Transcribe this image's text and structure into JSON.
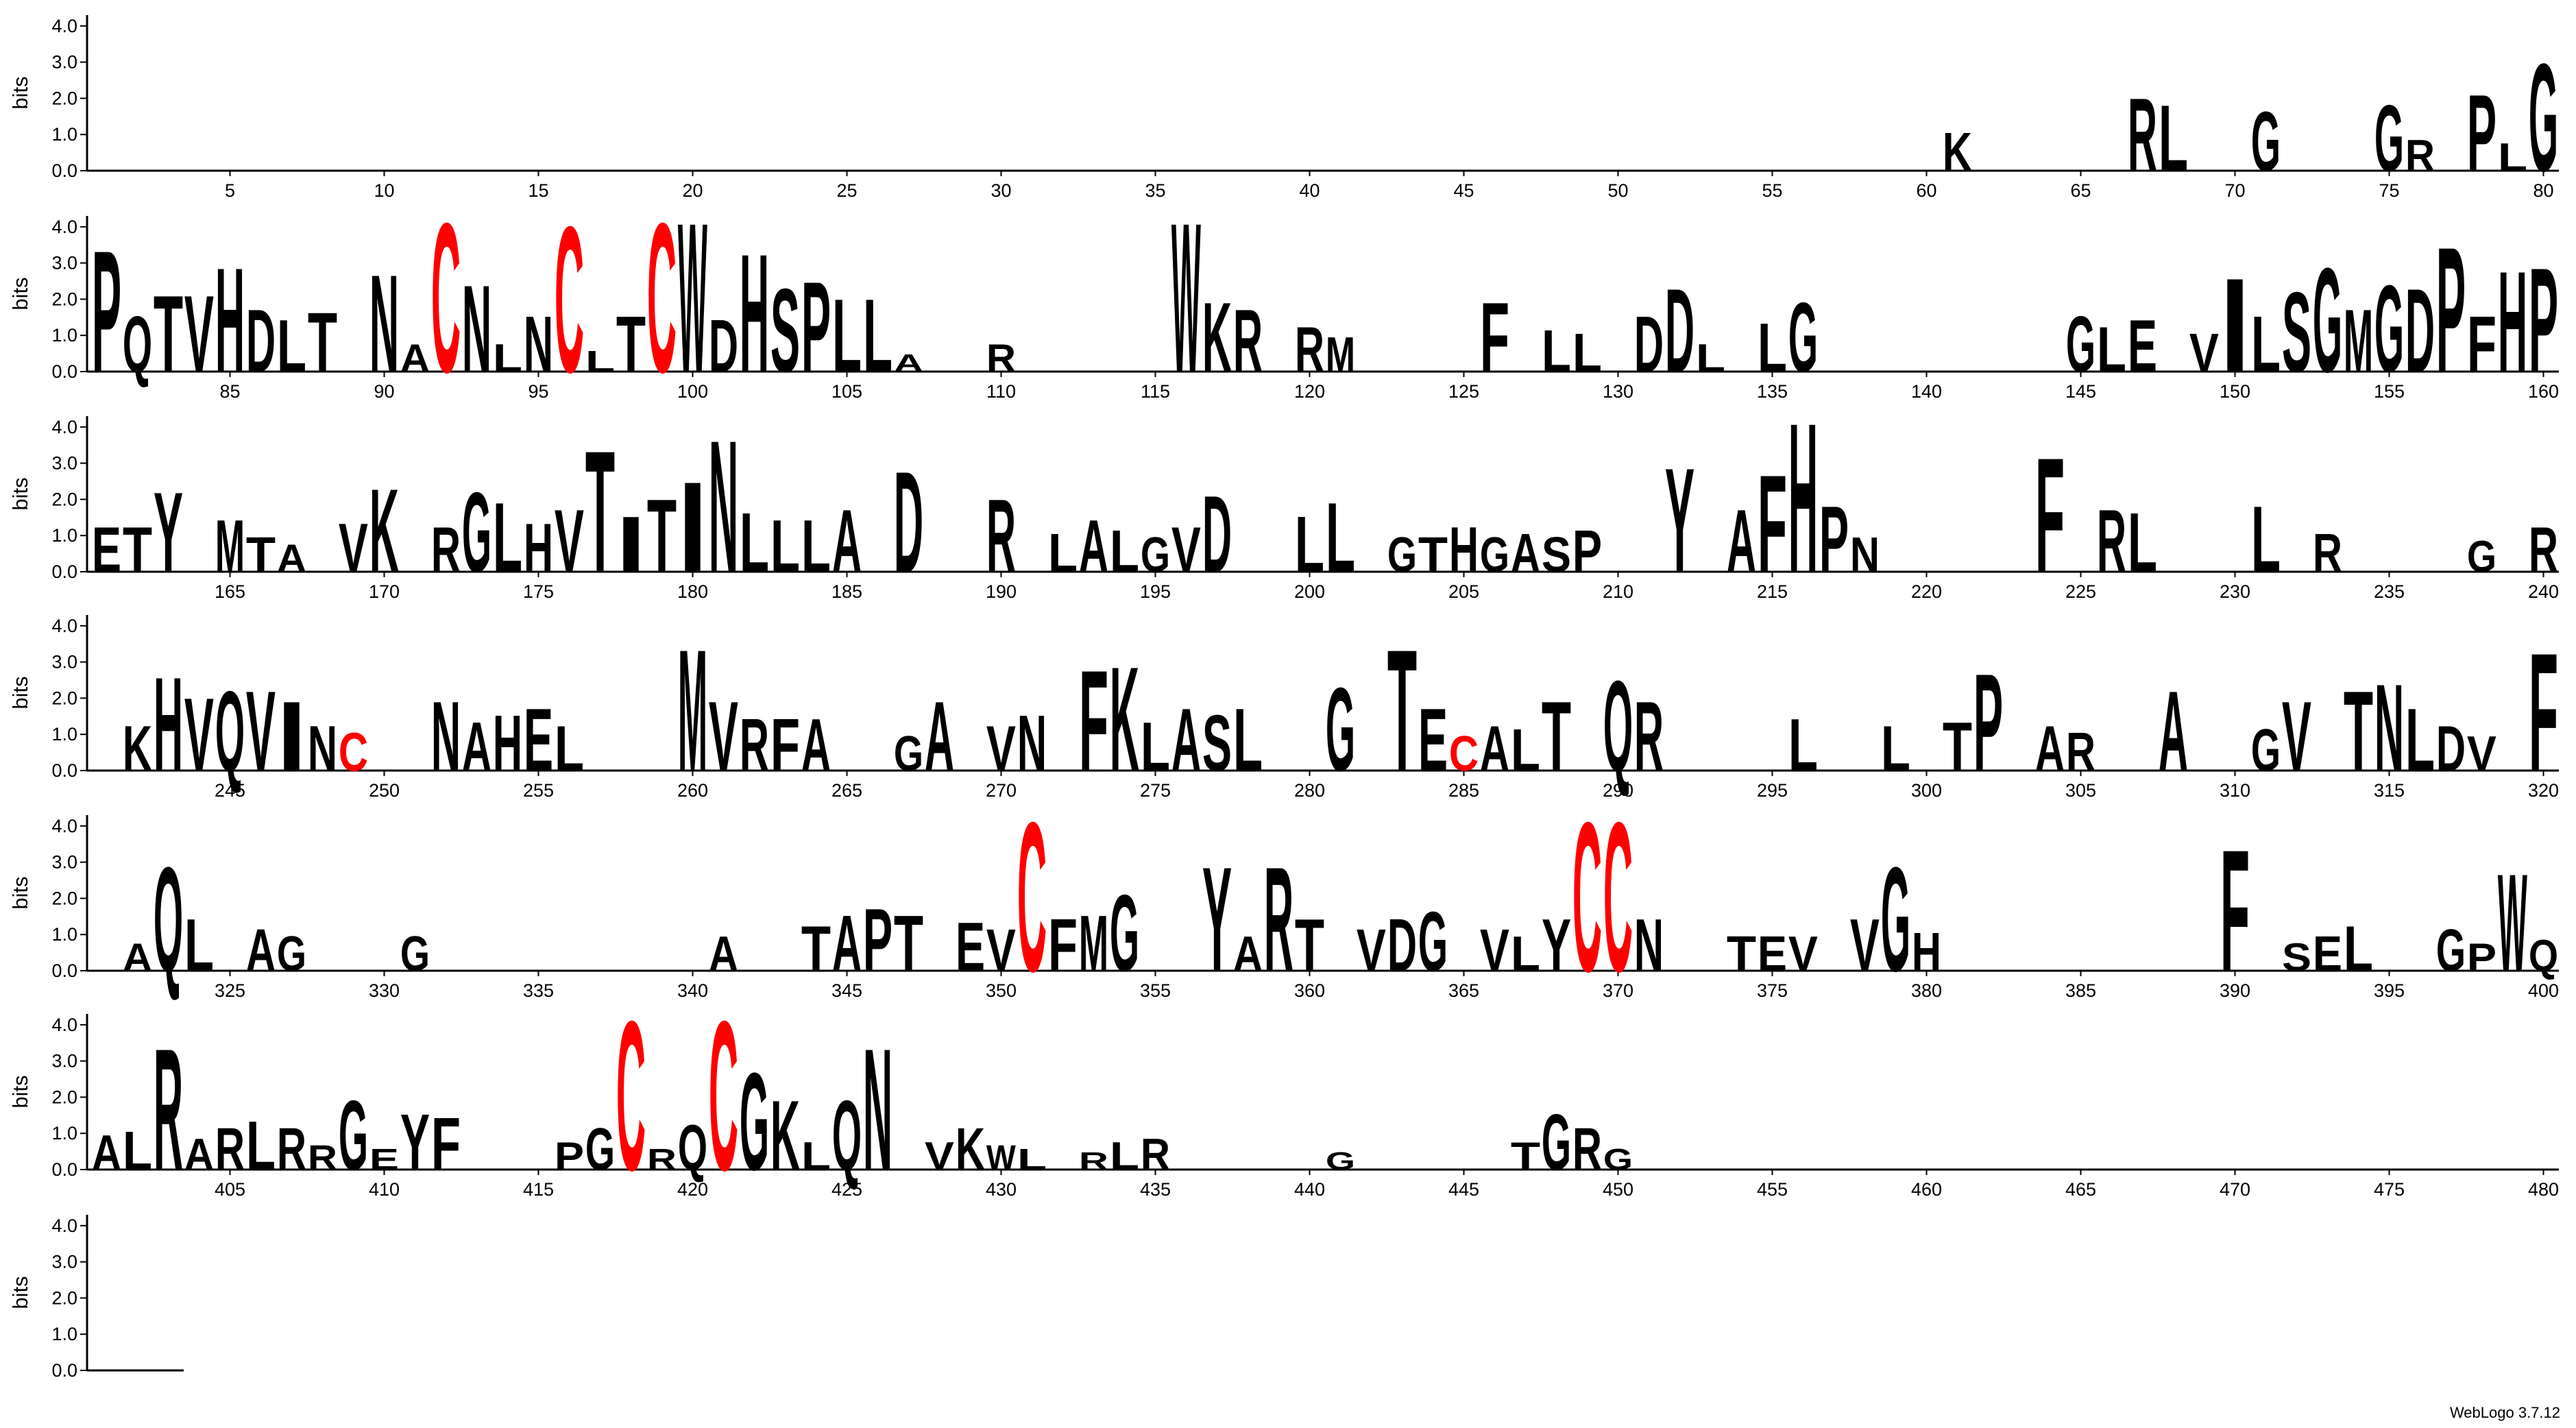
{
  "chart_data": [
    {
      "type": "logo",
      "ylabel": "bits",
      "colors": {
        "default": "#000000",
        "C": "#ff0000"
      },
      "xlim": [
        0.5,
        80.5
      ],
      "xticks": [
        5,
        10,
        15,
        20,
        25,
        30,
        35,
        40,
        45,
        50,
        55,
        60,
        65,
        70,
        75,
        80
      ],
      "ylim": [
        0,
        4.3
      ],
      "yticks": [
        {
          "value": 0,
          "label": "0.0"
        },
        {
          "value": 1,
          "label": "1.0"
        },
        {
          "value": 2,
          "label": "2.0"
        },
        {
          "value": 3,
          "label": "3.0"
        },
        {
          "value": 4,
          "label": "4.0"
        }
      ],
      "x": [
        61,
        67,
        68,
        71,
        75,
        76,
        78,
        79,
        80
      ],
      "letters": [
        "K",
        "R",
        "L",
        "G",
        "G",
        "R",
        "P",
        "L",
        "G"
      ],
      "values": [
        1.1,
        2.1,
        1.9,
        1.7,
        1.9,
        0.9,
        2.2,
        0.8,
        3.1
      ]
    },
    {
      "type": "logo",
      "ylabel": "bits",
      "colors": {
        "default": "#000000",
        "C": "#ff0000"
      },
      "xlim": [
        80.5,
        160.5
      ],
      "xticks": [
        85,
        90,
        95,
        100,
        105,
        110,
        115,
        120,
        125,
        130,
        135,
        140,
        145,
        150,
        155,
        160
      ],
      "ylim": [
        0,
        4.3
      ],
      "yticks": [
        {
          "value": 0,
          "label": "0.0"
        },
        {
          "value": 1,
          "label": "1.0"
        },
        {
          "value": 2,
          "label": "2.0"
        },
        {
          "value": 3,
          "label": "3.0"
        },
        {
          "value": 4,
          "label": "4.0"
        }
      ],
      "x": [
        81,
        82,
        83,
        84,
        85,
        86,
        87,
        88,
        90,
        91,
        92,
        93,
        94,
        95,
        96,
        97,
        98,
        99,
        100,
        101,
        102,
        103,
        104,
        105,
        106,
        107,
        110,
        116,
        117,
        118,
        120,
        121,
        126,
        128,
        129,
        131,
        132,
        133,
        135,
        136,
        145,
        146,
        147,
        149,
        150,
        151,
        152,
        153,
        154,
        155,
        156,
        157,
        158,
        159,
        160
      ],
      "letters": [
        "P",
        "Q",
        "T",
        "V",
        "H",
        "D",
        "L",
        "T",
        "N",
        "A",
        "C",
        "N",
        "L",
        "N",
        "C",
        "L",
        "T",
        "C",
        "W",
        "D",
        "H",
        "S",
        "P",
        "L",
        "L",
        "A",
        "R",
        "W",
        "K",
        "R",
        "R",
        "M",
        "F",
        "L",
        "L",
        "D",
        "D",
        "L",
        "L",
        "G",
        "G",
        "L",
        "E",
        "V",
        "I",
        "L",
        "S",
        "G",
        "M",
        "G",
        "D",
        "P",
        "F",
        "H",
        "P"
      ],
      "values": [
        3.5,
        1.6,
        2.2,
        2.2,
        3.0,
        1.8,
        1.5,
        1.7,
        2.8,
        0.8,
        4.3,
        2.5,
        0.8,
        1.6,
        4.2,
        0.6,
        1.6,
        4.3,
        4.3,
        1.5,
        3.4,
        2.4,
        2.6,
        2.1,
        2.1,
        0.5,
        0.8,
        4.3,
        2.0,
        1.8,
        1.3,
        1.0,
        2.0,
        1.2,
        1.1,
        1.6,
        2.4,
        0.8,
        1.4,
        2.0,
        1.6,
        1.3,
        1.5,
        1.1,
        2.7,
        1.6,
        2.3,
        3.0,
        1.8,
        2.5,
        2.4,
        3.6,
        1.6,
        2.9,
        3.0
      ]
    },
    {
      "type": "logo",
      "ylabel": "bits",
      "colors": {
        "default": "#000000",
        "C": "#ff0000"
      },
      "xlim": [
        160.5,
        240.5
      ],
      "xticks": [
        165,
        170,
        175,
        180,
        185,
        190,
        195,
        200,
        205,
        210,
        215,
        220,
        225,
        230,
        235,
        240
      ],
      "ylim": [
        0,
        4.3
      ],
      "yticks": [
        {
          "value": 0,
          "label": "0.0"
        },
        {
          "value": 1,
          "label": "1.0"
        },
        {
          "value": 2,
          "label": "2.0"
        },
        {
          "value": 3,
          "label": "3.0"
        },
        {
          "value": 4,
          "label": "4.0"
        }
      ],
      "x": [
        161,
        162,
        163,
        165,
        166,
        167,
        169,
        170,
        172,
        173,
        174,
        175,
        176,
        177,
        178,
        179,
        180,
        181,
        182,
        183,
        184,
        185,
        187,
        190,
        192,
        193,
        194,
        195,
        196,
        197,
        200,
        201,
        203,
        204,
        205,
        206,
        207,
        208,
        209,
        212,
        214,
        215,
        216,
        217,
        218,
        224,
        226,
        227,
        231,
        233,
        238,
        240
      ],
      "letters": [
        "E",
        "T",
        "Y",
        "M",
        "T",
        "A",
        "V",
        "K",
        "R",
        "G",
        "L",
        "H",
        "V",
        "T",
        "I",
        "T",
        "I",
        "N",
        "L",
        "L",
        "L",
        "A",
        "D",
        "R",
        "L",
        "A",
        "L",
        "G",
        "V",
        "D",
        "L",
        "L",
        "G",
        "T",
        "H",
        "G",
        "A",
        "S",
        "P",
        "Y",
        "A",
        "F",
        "H",
        "P",
        "N",
        "F",
        "R",
        "L",
        "L",
        "R",
        "G",
        "R"
      ],
      "values": [
        1.3,
        1.3,
        2.3,
        1.5,
        1.0,
        0.8,
        1.4,
        2.4,
        1.3,
        2.3,
        2.0,
        1.4,
        1.8,
        3.5,
        1.6,
        2.1,
        2.6,
        3.8,
        1.7,
        1.5,
        1.5,
        1.8,
        2.9,
        2.1,
        1.1,
        1.5,
        1.2,
        1.0,
        1.3,
        2.2,
        1.6,
        2.0,
        1.0,
        1.0,
        1.3,
        1.0,
        1.1,
        1.0,
        1.2,
        3.0,
        1.8,
        2.8,
        4.3,
        1.9,
        1.0,
        3.3,
        1.8,
        1.7,
        1.9,
        1.1,
        0.9,
        1.3
      ]
    },
    {
      "type": "logo",
      "ylabel": "bits",
      "colors": {
        "default": "#000000",
        "C": "#ff0000"
      },
      "xlim": [
        240.5,
        320.5
      ],
      "xticks": [
        245,
        250,
        255,
        260,
        265,
        270,
        275,
        280,
        285,
        290,
        295,
        300,
        305,
        310,
        315,
        320
      ],
      "ylim": [
        0,
        4.3
      ],
      "yticks": [
        {
          "value": 0,
          "label": "0.0"
        },
        {
          "value": 1,
          "label": "1.0"
        },
        {
          "value": 2,
          "label": "2.0"
        },
        {
          "value": 3,
          "label": "3.0"
        },
        {
          "value": 4,
          "label": "4.0"
        }
      ],
      "x": [
        242,
        243,
        244,
        245,
        246,
        247,
        248,
        249,
        252,
        253,
        254,
        255,
        256,
        260,
        261,
        262,
        263,
        264,
        267,
        268,
        270,
        271,
        273,
        274,
        275,
        276,
        277,
        278,
        281,
        283,
        284,
        285,
        286,
        287,
        288,
        290,
        291,
        296,
        299,
        301,
        302,
        304,
        305,
        308,
        311,
        312,
        314,
        315,
        316,
        317,
        318,
        320
      ],
      "letters": [
        "K",
        "H",
        "V",
        "Q",
        "V",
        "I",
        "N",
        "C",
        "N",
        "A",
        "H",
        "E",
        "L",
        "M",
        "V",
        "R",
        "F",
        "A",
        "G",
        "A",
        "V",
        "N",
        "F",
        "K",
        "L",
        "A",
        "S",
        "L",
        "G",
        "T",
        "E",
        "C",
        "A",
        "L",
        "T",
        "Q",
        "R",
        "L",
        "L",
        "T",
        "P",
        "A",
        "R",
        "A",
        "G",
        "V",
        "T",
        "N",
        "L",
        "D",
        "V",
        "F"
      ],
      "values": [
        1.3,
        2.7,
        2.1,
        2.3,
        2.3,
        2.0,
        1.3,
        1.1,
        2.0,
        1.4,
        1.6,
        1.8,
        1.3,
        3.5,
        2.0,
        1.5,
        1.5,
        1.5,
        1.0,
        2.0,
        1.3,
        1.6,
        2.9,
        3.0,
        1.4,
        1.8,
        1.6,
        1.8,
        2.4,
        3.5,
        1.8,
        1.0,
        1.3,
        1.2,
        2.0,
        2.6,
        2.0,
        1.5,
        1.3,
        1.4,
        2.8,
        1.3,
        1.1,
        2.3,
        1.2,
        2.0,
        2.3,
        2.5,
        1.8,
        1.3,
        1.0,
        3.4
      ]
    },
    {
      "type": "logo",
      "ylabel": "bits",
      "colors": {
        "default": "#000000",
        "C": "#ff0000"
      },
      "xlim": [
        320.5,
        400.5
      ],
      "xticks": [
        325,
        330,
        335,
        340,
        345,
        350,
        355,
        360,
        365,
        370,
        375,
        380,
        385,
        390,
        395,
        400
      ],
      "ylim": [
        0,
        4.3
      ],
      "yticks": [
        {
          "value": 0,
          "label": "0.0"
        },
        {
          "value": 1,
          "label": "1.0"
        },
        {
          "value": 2,
          "label": "2.0"
        },
        {
          "value": 3,
          "label": "3.0"
        },
        {
          "value": 4,
          "label": "4.0"
        }
      ],
      "x": [
        322,
        323,
        324,
        326,
        327,
        331,
        341,
        344,
        345,
        346,
        347,
        349,
        350,
        351,
        352,
        353,
        354,
        357,
        358,
        359,
        360,
        362,
        363,
        364,
        366,
        367,
        368,
        369,
        370,
        371,
        374,
        375,
        376,
        378,
        379,
        380,
        390,
        392,
        393,
        394,
        397,
        398,
        399,
        400
      ],
      "letters": [
        "A",
        "Q",
        "L",
        "A",
        "G",
        "G",
        "A",
        "T",
        "A",
        "P",
        "T",
        "E",
        "V",
        "C",
        "F",
        "M",
        "G",
        "Y",
        "A",
        "R",
        "T",
        "V",
        "D",
        "G",
        "V",
        "L",
        "Y",
        "C",
        "C",
        "N",
        "T",
        "E",
        "V",
        "V",
        "G",
        "H",
        "F",
        "S",
        "E",
        "L",
        "G",
        "P",
        "W",
        "Q"
      ],
      "values": [
        0.8,
        3.0,
        1.5,
        1.2,
        1.0,
        1.0,
        1.0,
        1.3,
        1.6,
        1.8,
        1.6,
        1.4,
        1.2,
        4.3,
        1.5,
        1.6,
        2.2,
        3.0,
        1.0,
        3.0,
        1.5,
        1.2,
        1.5,
        1.7,
        1.2,
        1.0,
        1.5,
        4.3,
        4.3,
        1.5,
        1.0,
        1.0,
        1.0,
        1.5,
        3.0,
        1.1,
        3.5,
        0.8,
        1.0,
        1.3,
        1.2,
        0.8,
        2.8,
        0.9
      ]
    },
    {
      "type": "logo",
      "ylabel": "bits",
      "colors": {
        "default": "#000000",
        "C": "#ff0000"
      },
      "xlim": [
        400.5,
        480.5
      ],
      "xticks": [
        405,
        410,
        415,
        420,
        425,
        430,
        435,
        440,
        445,
        450,
        455,
        460,
        465,
        470,
        475,
        480
      ],
      "ylim": [
        0,
        4.3
      ],
      "yticks": [
        {
          "value": 0,
          "label": "0.0"
        },
        {
          "value": 1,
          "label": "1.0"
        },
        {
          "value": 2,
          "label": "2.0"
        },
        {
          "value": 3,
          "label": "3.0"
        },
        {
          "value": 4,
          "label": "4.0"
        }
      ],
      "x": [
        401,
        402,
        403,
        404,
        405,
        406,
        407,
        408,
        409,
        410,
        411,
        412,
        416,
        417,
        418,
        419,
        420,
        421,
        422,
        423,
        424,
        425,
        426,
        428,
        429,
        430,
        431,
        433,
        434,
        435,
        441,
        447,
        448,
        449,
        450
      ],
      "letters": [
        "A",
        "L",
        "R",
        "A",
        "R",
        "L",
        "R",
        "R",
        "G",
        "E",
        "Y",
        "F",
        "P",
        "G",
        "C",
        "R",
        "Q",
        "C",
        "G",
        "K",
        "L",
        "Q",
        "N",
        "V",
        "K",
        "W",
        "L",
        "R",
        "L",
        "R",
        "G",
        "T",
        "G",
        "R",
        "G"
      ],
      "values": [
        1.0,
        1.1,
        3.5,
        0.9,
        1.2,
        1.4,
        1.2,
        0.7,
        2.0,
        0.6,
        1.6,
        1.5,
        0.8,
        1.2,
        4.3,
        0.6,
        1.3,
        4.3,
        2.8,
        2.0,
        0.8,
        2.0,
        3.5,
        0.8,
        1.2,
        0.7,
        0.6,
        0.5,
        0.8,
        0.9,
        0.5,
        0.8,
        1.6,
        1.2,
        0.6
      ]
    },
    {
      "type": "logo",
      "ylabel": "bits",
      "colors": {
        "default": "#000000",
        "C": "#ff0000"
      },
      "xlim": [
        480.5,
        483.5
      ],
      "xticks": [],
      "ylim": [
        0,
        4.3
      ],
      "yticks": [
        {
          "value": 0,
          "label": "0.0"
        },
        {
          "value": 1,
          "label": "1.0"
        },
        {
          "value": 2,
          "label": "2.0"
        },
        {
          "value": 3,
          "label": "3.0"
        },
        {
          "value": 4,
          "label": "4.0"
        }
      ],
      "x": [],
      "letters": [],
      "values": []
    }
  ],
  "footer": "WebLogo 3.7.12"
}
